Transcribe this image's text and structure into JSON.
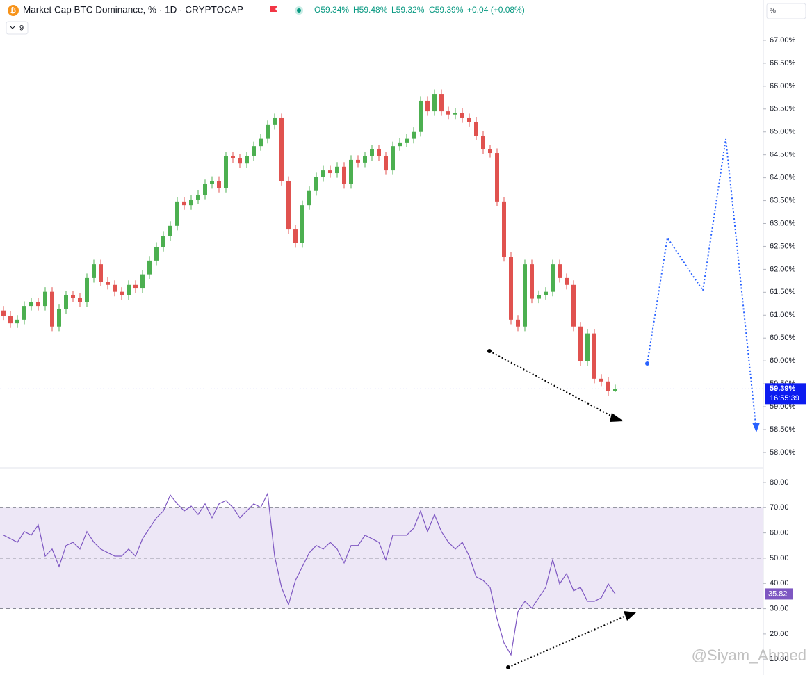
{
  "header": {
    "indicator_count": 9,
    "unit_label": "%",
    "watermark": "@Siyam_Ahmed"
  },
  "chart_data": [
    {
      "type": "candlestick",
      "title": "Market Cap BTC Dominance, % · 1D · CRYPTOCAP",
      "ohlc_labels": [
        "O59.34%",
        "H59.48%",
        "L59.32%",
        "C59.39%",
        "+0.04 (+0.08%)"
      ],
      "last_price_label": "59.39%",
      "countdown": "16:55:39",
      "up_color": "#4caf50",
      "down_color": "#e0524f",
      "open": [
        61.1,
        60.98,
        60.82,
        60.9,
        61.2,
        61.28,
        61.2,
        61.51,
        60.75,
        61.13,
        61.43,
        61.38,
        61.28,
        61.81,
        62.11,
        61.73,
        61.66,
        61.51,
        61.43,
        61.66,
        61.58,
        61.89,
        62.19,
        62.49,
        62.72,
        62.95,
        63.48,
        63.4,
        63.52,
        63.63,
        63.86,
        63.93,
        63.78,
        64.47,
        64.42,
        64.31,
        64.47,
        64.69,
        64.85,
        65.15,
        65.3,
        63.93,
        62.87,
        62.57,
        63.4,
        63.71,
        64.01,
        64.16,
        64.1,
        64.24,
        63.86,
        64.39,
        64.33,
        64.47,
        64.62,
        64.47,
        64.16,
        64.69,
        64.77,
        64.85,
        65.0,
        65.68,
        65.45,
        65.83,
        65.45,
        65.38,
        65.42,
        65.3,
        65.22,
        64.92,
        64.62,
        64.54,
        63.48,
        62.27,
        60.9,
        60.75,
        62.11,
        61.36,
        61.44,
        61.51,
        62.11,
        61.81,
        61.66,
        60.75,
        59.99,
        60.6,
        59.61,
        59.55,
        59.34
      ],
      "high": [
        61.2,
        61.08,
        61.0,
        61.3,
        61.38,
        61.38,
        61.61,
        61.61,
        61.23,
        61.53,
        61.53,
        61.48,
        61.91,
        62.21,
        62.21,
        61.83,
        61.76,
        61.61,
        61.76,
        61.76,
        61.99,
        62.29,
        62.59,
        62.82,
        63.05,
        63.58,
        63.58,
        63.62,
        63.73,
        63.96,
        64.03,
        64.03,
        64.57,
        64.57,
        64.52,
        64.57,
        64.79,
        64.95,
        65.25,
        65.4,
        65.4,
        64.03,
        62.97,
        63.5,
        63.81,
        64.11,
        64.26,
        64.26,
        64.34,
        64.34,
        64.49,
        64.49,
        64.57,
        64.72,
        64.72,
        64.57,
        64.79,
        64.87,
        64.95,
        65.1,
        65.78,
        65.78,
        65.93,
        65.93,
        65.55,
        65.52,
        65.52,
        65.4,
        65.32,
        65.02,
        64.72,
        64.64,
        63.58,
        62.37,
        61.0,
        62.21,
        62.21,
        61.54,
        61.61,
        62.21,
        62.21,
        61.91,
        61.76,
        60.85,
        60.7,
        60.7,
        59.71,
        59.65,
        59.48
      ],
      "low": [
        60.88,
        60.72,
        60.72,
        60.8,
        61.1,
        61.1,
        61.1,
        60.65,
        60.65,
        61.03,
        61.28,
        61.18,
        61.18,
        61.71,
        61.63,
        61.56,
        61.41,
        61.33,
        61.33,
        61.48,
        61.48,
        61.79,
        62.09,
        62.39,
        62.62,
        62.85,
        63.3,
        63.3,
        63.42,
        63.53,
        63.76,
        63.68,
        63.68,
        64.32,
        64.21,
        64.21,
        64.37,
        64.59,
        64.75,
        65.05,
        63.83,
        62.77,
        62.47,
        62.47,
        63.3,
        63.61,
        63.91,
        64.0,
        64.0,
        63.76,
        63.76,
        64.23,
        64.23,
        64.37,
        64.37,
        64.06,
        64.06,
        64.59,
        64.67,
        64.75,
        64.9,
        65.35,
        65.35,
        65.35,
        65.28,
        65.28,
        65.2,
        65.12,
        64.82,
        64.52,
        64.44,
        63.38,
        62.17,
        60.8,
        60.65,
        60.65,
        61.26,
        61.26,
        61.34,
        61.41,
        61.71,
        61.56,
        60.65,
        59.89,
        59.89,
        59.51,
        59.45,
        59.24,
        59.32
      ],
      "close": [
        60.98,
        60.82,
        60.9,
        61.2,
        61.28,
        61.2,
        61.51,
        60.75,
        61.13,
        61.43,
        61.38,
        61.28,
        61.81,
        62.11,
        61.73,
        61.66,
        61.51,
        61.43,
        61.66,
        61.58,
        61.89,
        62.19,
        62.49,
        62.72,
        62.95,
        63.48,
        63.4,
        63.52,
        63.63,
        63.86,
        63.93,
        63.78,
        64.47,
        64.42,
        64.31,
        64.47,
        64.69,
        64.85,
        65.15,
        65.3,
        63.93,
        62.87,
        62.57,
        63.4,
        63.71,
        64.01,
        64.16,
        64.1,
        64.24,
        63.86,
        64.39,
        64.33,
        64.47,
        64.62,
        64.47,
        64.16,
        64.69,
        64.77,
        64.85,
        65.0,
        65.68,
        65.45,
        65.83,
        65.45,
        65.38,
        65.42,
        65.3,
        65.22,
        64.92,
        64.62,
        64.54,
        63.48,
        62.27,
        60.9,
        60.75,
        62.11,
        61.36,
        61.44,
        61.51,
        62.11,
        61.81,
        61.66,
        60.75,
        59.99,
        60.6,
        59.61,
        59.55,
        59.34,
        59.39
      ],
      "ylim": [
        57.68,
        67.88
      ],
      "yticks": [
        {
          "value": 58,
          "label": "58.00%"
        },
        {
          "value": 58.5,
          "label": "58.50%"
        },
        {
          "value": 59,
          "label": "59.00%"
        },
        {
          "value": 59.5,
          "label": "59.50%"
        },
        {
          "value": 60,
          "label": "60.00%"
        },
        {
          "value": 60.5,
          "label": "60.50%"
        },
        {
          "value": 61,
          "label": "61.00%"
        },
        {
          "value": 61.5,
          "label": "61.50%"
        },
        {
          "value": 62,
          "label": "62.00%"
        },
        {
          "value": 62.5,
          "label": "62.50%"
        },
        {
          "value": 63,
          "label": "63.00%"
        },
        {
          "value": 63.5,
          "label": "63.50%"
        },
        {
          "value": 64,
          "label": "64.00%"
        },
        {
          "value": 64.5,
          "label": "64.50%"
        },
        {
          "value": 65,
          "label": "65.00%"
        },
        {
          "value": 65.5,
          "label": "65.50%"
        },
        {
          "value": 66,
          "label": "66.00%"
        },
        {
          "value": 66.5,
          "label": "66.50%"
        },
        {
          "value": 67,
          "label": "67.00%"
        }
      ]
    },
    {
      "type": "line",
      "series": [
        {
          "color": "#7e57c2",
          "values": [
            59.1,
            57.7,
            56.3,
            60.5,
            59.1,
            63.2,
            50.8,
            53.6,
            46.7,
            55.0,
            56.3,
            53.6,
            60.5,
            56.3,
            53.6,
            52.2,
            50.8,
            50.8,
            53.6,
            50.8,
            57.7,
            61.8,
            66.0,
            68.7,
            75.0,
            71.5,
            68.7,
            70.6,
            67.3,
            71.5,
            66.0,
            71.5,
            72.8,
            70.1,
            66.0,
            68.7,
            71.5,
            70.1,
            75.6,
            50.8,
            38.4,
            31.6,
            41.2,
            46.7,
            52.2,
            55.0,
            53.6,
            56.3,
            53.6,
            48.1,
            55.0,
            55.0,
            59.1,
            57.7,
            56.3,
            49.4,
            59.1,
            59.1,
            59.1,
            61.8,
            68.7,
            60.5,
            67.3,
            60.5,
            56.3,
            53.6,
            56.3,
            50.8,
            42.6,
            41.2,
            38.4,
            26.0,
            16.4,
            11.7,
            28.8,
            32.9,
            30.2,
            34.3,
            38.4,
            49.4,
            39.8,
            43.9,
            37.1,
            38.4,
            32.9,
            32.9,
            34.3,
            39.8,
            35.82
          ]
        }
      ],
      "band": [
        30,
        70
      ],
      "midline": 50,
      "band_color": "#ede7f6",
      "ylim": [
        4,
        85.5
      ],
      "yticks": [
        {
          "value": 10,
          "label": "10.00"
        },
        {
          "value": 20,
          "label": "20.00"
        },
        {
          "value": 30,
          "label": "30.00"
        },
        {
          "value": 40,
          "label": "40.00"
        },
        {
          "value": 50,
          "label": "50.00"
        },
        {
          "value": 60,
          "label": "60.00"
        },
        {
          "value": 70,
          "label": "70.00"
        },
        {
          "value": 80,
          "label": "80.00"
        }
      ]
    }
  ]
}
